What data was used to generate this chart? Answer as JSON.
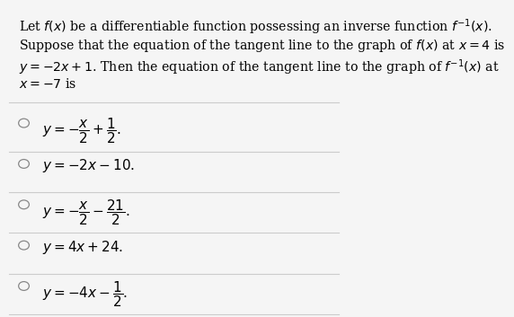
{
  "background_color": "#f5f5f5",
  "question_text_lines": [
    "Let $f(x)$ be a differentiable function possessing an inverse function $f^{-1}(x)$.",
    "Suppose that the equation of the tangent line to the graph of $f(x)$ at $x=4$ is",
    "$y=-2x+1$. Then the equation of the tangent line to the graph of $f^{-1}(x)$ at",
    "$x=-7$ is"
  ],
  "options": [
    "$y = -\\dfrac{x}{2}+\\dfrac{1}{2}.$",
    "$y = -2x-10.$",
    "$y = -\\dfrac{x}{2}-\\dfrac{21}{2}.$",
    "$y = 4x+24.$",
    "$y = -4x-\\dfrac{1}{2}.$"
  ],
  "divider_color": "#cccccc",
  "text_color": "#000000",
  "circle_color": "#888888",
  "font_size_question": 10.2,
  "font_size_option": 11.0
}
